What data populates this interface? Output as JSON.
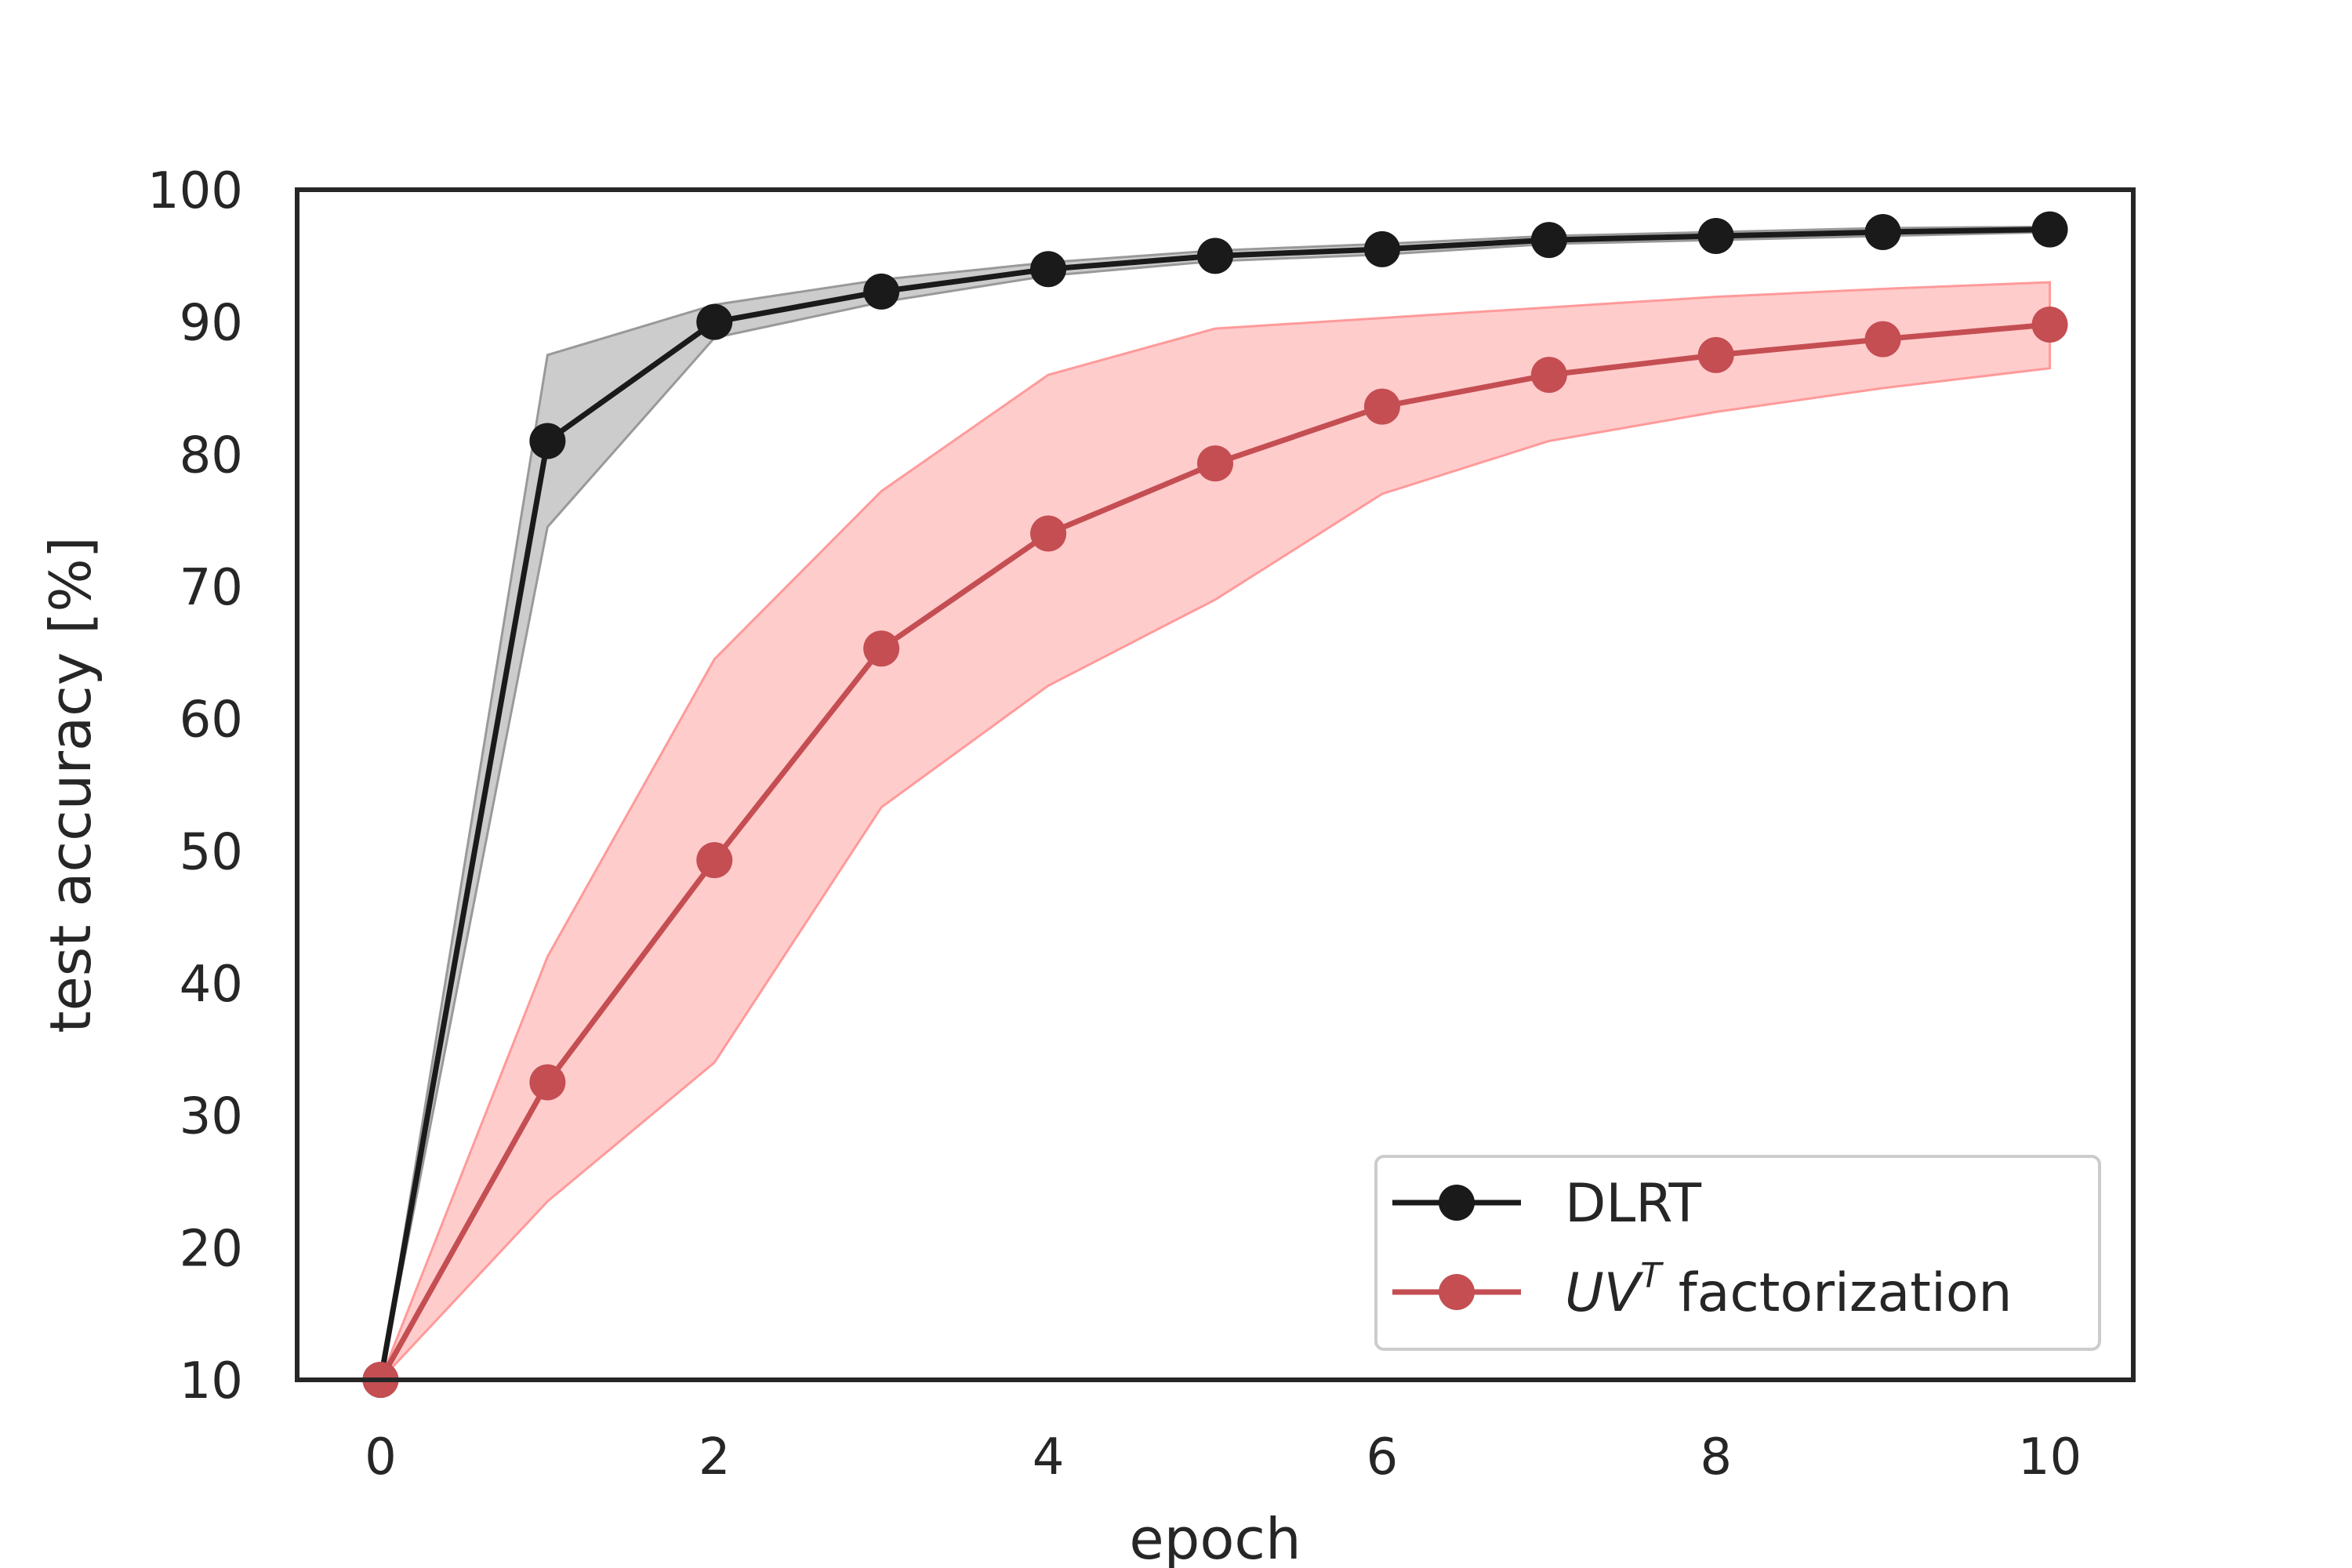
{
  "chart_data": {
    "type": "line",
    "title": "",
    "xlabel": "epoch",
    "ylabel": "test accuracy [%]",
    "xlim": [
      -0.5,
      10.5
    ],
    "ylim": [
      10,
      100
    ],
    "xticks": [
      0,
      2,
      4,
      6,
      8,
      10
    ],
    "yticks": [
      10,
      20,
      30,
      40,
      50,
      60,
      70,
      80,
      90,
      100
    ],
    "grid": false,
    "legend_position": "lower-right",
    "x": [
      0,
      1,
      2,
      3,
      4,
      5,
      6,
      7,
      8,
      9,
      10
    ],
    "series": [
      {
        "name": "DLRT",
        "color": "#1a1a1a",
        "band_color": "#999999",
        "values": [
          10.0,
          81.0,
          90.0,
          92.3,
          94.0,
          95.0,
          95.5,
          96.2,
          96.5,
          96.8,
          97.0
        ],
        "lower": [
          10.0,
          74.5,
          88.8,
          91.5,
          93.5,
          94.6,
          95.1,
          95.9,
          96.2,
          96.5,
          96.8
        ],
        "upper": [
          10.0,
          87.5,
          91.3,
          93.2,
          94.5,
          95.4,
          95.9,
          96.5,
          96.8,
          97.1,
          97.2
        ]
      },
      {
        "name_prefix": "UV",
        "name_superscript": "T",
        "name_suffix": " factorization",
        "color": "#c44e52",
        "band_color": "#ff9a9a",
        "values": [
          10.0,
          32.5,
          49.3,
          65.3,
          74.0,
          79.3,
          83.6,
          86.0,
          87.5,
          88.7,
          89.8
        ],
        "lower": [
          10.0,
          23.5,
          34.0,
          53.3,
          62.5,
          69.0,
          77.0,
          81.0,
          83.2,
          85.0,
          86.5
        ],
        "upper": [
          10.0,
          42.0,
          64.5,
          77.2,
          86.0,
          89.5,
          90.3,
          91.1,
          91.9,
          92.5,
          93.0
        ]
      }
    ]
  }
}
